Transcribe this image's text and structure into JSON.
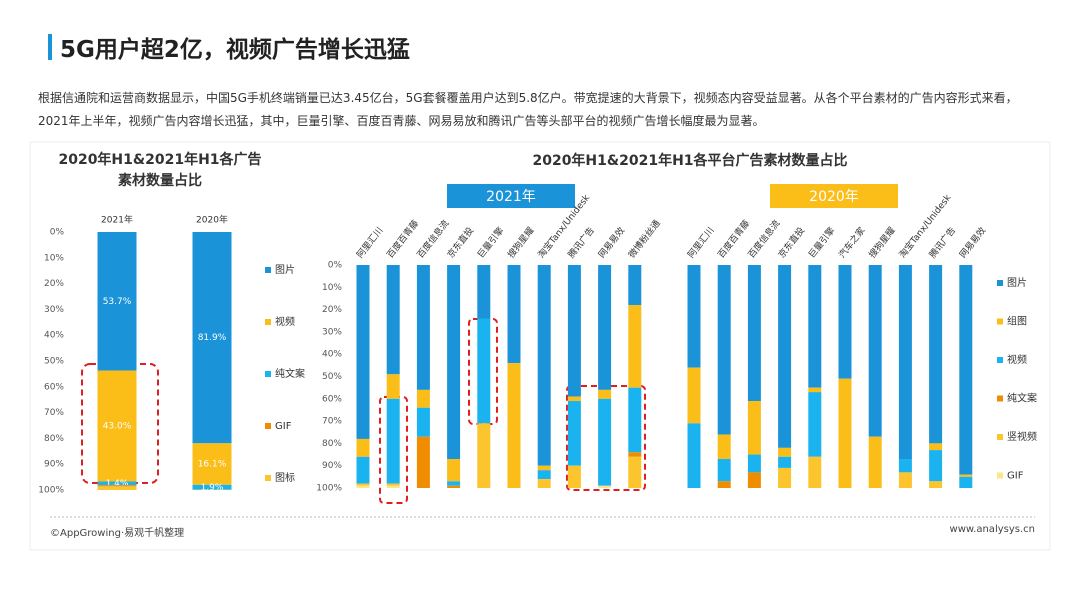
{
  "header": {
    "title": "5G用户超2亿，视频广告增长迅猛"
  },
  "description": "根据信通院和运营商数据显示，中国5G手机终端销量已达3.45亿台，5G套餐覆盖用户达到5.8亿户。带宽提速的大背景下，视频态内容受益显著。从各个平台素材的广告内容形式来看，2021年上半年，视频广告内容增长迅猛，其中，巨量引擎、百度百青藤、网易易放和腾讯广告等头部平台的视频广告增长幅度最为显著。",
  "footer": {
    "source": "©AppGrowing·易观千帆整理",
    "site": "www.analysys.cn"
  },
  "chart_data": [
    {
      "type": "bar",
      "stacked": true,
      "y_inverted": true,
      "title": "2020年H1&2021年H1各广告\n素材数量占比",
      "categories": [
        "2021年",
        "2020年"
      ],
      "series": [
        {
          "name": "图片",
          "color": "#1a93d8",
          "values": [
            53.7,
            81.9
          ],
          "value_labels": [
            "53.7%",
            "81.9%"
          ]
        },
        {
          "name": "视频",
          "color": "#fbbd17",
          "values": [
            43.0,
            16.1
          ],
          "value_labels": [
            "43.0%",
            "16.1%"
          ]
        },
        {
          "name": "纯文案",
          "color": "#1ab3f0",
          "values": [
            1.4,
            1.9
          ],
          "value_labels": [
            "1.4%",
            "1.9%"
          ]
        },
        {
          "name": "GIF",
          "color": "#f08c00",
          "values": [
            0.5,
            0
          ],
          "value_labels": [
            null,
            null
          ]
        },
        {
          "name": "图标",
          "color": "#fcc52e",
          "values": [
            1.4,
            0.1
          ],
          "value_labels": [
            null,
            null
          ]
        }
      ],
      "ylim": [
        0,
        100
      ],
      "yticks": [
        {
          "value": 0,
          "label": "0%"
        },
        {
          "value": 10,
          "label": "10%"
        },
        {
          "value": 20,
          "label": "20%"
        },
        {
          "value": 30,
          "label": "30%"
        },
        {
          "value": 40,
          "label": "40%"
        },
        {
          "value": 50,
          "label": "50%"
        },
        {
          "value": 60,
          "label": "60%"
        },
        {
          "value": 70,
          "label": "70%"
        },
        {
          "value": 80,
          "label": "80%"
        },
        {
          "value": 90,
          "label": "90%"
        },
        {
          "value": 100,
          "label": "100%"
        }
      ]
    },
    {
      "type": "bar",
      "stacked": true,
      "y_inverted": true,
      "title": "2020年H1&2021年H1各平台广告素材数量占比",
      "series": [
        {
          "name": "图片",
          "color": "#1a93d8"
        },
        {
          "name": "组图",
          "color": "#fbbd17"
        },
        {
          "name": "视频",
          "color": "#1ab3f0"
        },
        {
          "name": "纯文案",
          "color": "#f08c00"
        },
        {
          "name": "竖视频",
          "color": "#fcc52e"
        },
        {
          "name": "GIF",
          "color": "#fde58a"
        }
      ],
      "groups": [
        {
          "name": "2021年",
          "color": "#1a93d8",
          "categories": [
            "阿里汇川",
            "百度百青藤",
            "百度信息流",
            "京东直投",
            "巨量引擎",
            "搜狗星耀",
            "淘宝Tanx/Unidesk",
            "腾讯广告",
            "网易易效",
            "微博粉丝通"
          ],
          "values": [
            [
              78,
              49,
              56,
              87,
              24,
              44,
              90,
              59,
              56,
              18
            ],
            [
              8,
              11,
              8,
              10,
              0,
              56,
              2,
              2,
              4,
              37
            ],
            [
              12,
              38,
              13,
              2,
              47,
              0,
              4,
              29,
              39,
              29
            ],
            [
              0,
              0,
              23,
              1,
              0,
              0,
              0,
              0,
              0,
              2
            ],
            [
              1,
              1,
              0,
              0,
              29,
              0,
              4,
              10,
              0,
              14
            ],
            [
              1,
              1,
              0,
              0,
              0,
              0,
              0,
              0,
              1,
              0
            ]
          ]
        },
        {
          "name": "2020年",
          "color": "#fbbd17",
          "categories": [
            "阿里汇川",
            "百度百青藤",
            "百度信息流",
            "京东直投",
            "巨量引擎",
            "汽车之家",
            "搜狗星耀",
            "淘宝Tanx/Unidesk",
            "腾讯广告",
            "网易易效"
          ],
          "values": [
            [
              46,
              76,
              61,
              82,
              55,
              51,
              77,
              87,
              80,
              94
            ],
            [
              25,
              11,
              24,
              4,
              2,
              49,
              23,
              0,
              3,
              1
            ],
            [
              29,
              10,
              8,
              5,
              29,
              0,
              0,
              6,
              14,
              5
            ],
            [
              0,
              3,
              7,
              0,
              0,
              0,
              0,
              0,
              0,
              0
            ],
            [
              0,
              0,
              0,
              9,
              14,
              0,
              0,
              7,
              3,
              0
            ],
            [
              0,
              0,
              0,
              0,
              0,
              0,
              0,
              0,
              0,
              0
            ]
          ]
        }
      ],
      "ylim": [
        0,
        100
      ],
      "yticks": [
        {
          "value": 0,
          "label": "0%"
        },
        {
          "value": 10,
          "label": "10%"
        },
        {
          "value": 20,
          "label": "20%"
        },
        {
          "value": 30,
          "label": "30%"
        },
        {
          "value": 40,
          "label": "40%"
        },
        {
          "value": 50,
          "label": "50%"
        },
        {
          "value": 60,
          "label": "60%"
        },
        {
          "value": 70,
          "label": "70%"
        },
        {
          "value": 80,
          "label": "80%"
        },
        {
          "value": 90,
          "label": "90%"
        },
        {
          "value": 100,
          "label": "100%"
        }
      ]
    }
  ]
}
